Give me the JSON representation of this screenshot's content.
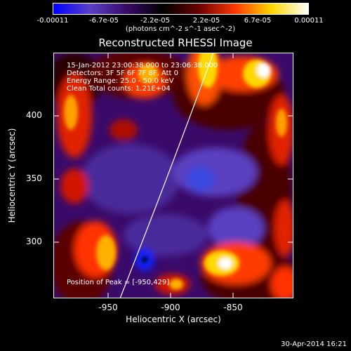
{
  "colorbar": {
    "colors": [
      "#0000ff",
      "#5a40c8",
      "#3a0a6a",
      "#000000",
      "#6a0000",
      "#ff3a00",
      "#ffd800",
      "#ffffff"
    ],
    "tick_labels": [
      "-0.00011",
      "-6.7e-05",
      "-2.2e-05",
      "2.2e-05",
      "6.7e-05",
      "0.00011"
    ],
    "units": "(photons cm^-2 s^-1 asec^-2)"
  },
  "title": "Reconstructed RHESSI Image",
  "info": {
    "time": "15-Jan-2012 23:00:38.000 to 23:06:38.000",
    "detectors": "Detectors: 3F 5F 6F 7F 8F, Att 0",
    "energy": "Energy Range: 25.0 - 50.0 keV",
    "clean": "Clean     Total counts: 1.21E+04"
  },
  "peak": "Position of Peak = [-950,429]",
  "x_axis": {
    "label": "Heliocentric X (arcsec)",
    "ticks": [
      "-950",
      "-900",
      "-850"
    ]
  },
  "y_axis": {
    "label": "Heliocentric Y (arcsec)",
    "ticks": [
      "400",
      "350",
      "300"
    ]
  },
  "footer": "30-Apr-2014 16:21"
}
